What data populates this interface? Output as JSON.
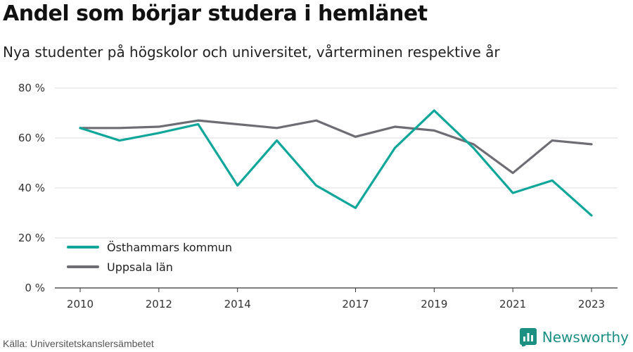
{
  "title": "Andel som börjar studera i hemlänet",
  "subtitle": "Nya studenter på högskolor och universitet, vårterminen respektive år",
  "source": "Källa: Universitetskanslersämbetet",
  "brand": "Newsworthy",
  "chart_data": {
    "type": "line",
    "x": [
      2010,
      2011,
      2012,
      2013,
      2014,
      2015,
      2016,
      2017,
      2018,
      2019,
      2020,
      2021,
      2022,
      2023
    ],
    "x_ticks": [
      "2010",
      "2012",
      "2014",
      "2017",
      "2019",
      "2021",
      "2023"
    ],
    "x_tick_values": [
      2010,
      2012,
      2014,
      2017,
      2019,
      2021,
      2023
    ],
    "ylim": [
      0,
      80
    ],
    "y_ticks": [
      "0 %",
      "20 %",
      "40 %",
      "60 %",
      "80 %"
    ],
    "y_tick_values": [
      0,
      20,
      40,
      60,
      80
    ],
    "grid": true,
    "legend_position": "bottom-left",
    "series": [
      {
        "name": "Östhammars kommun",
        "color": "#10a69a",
        "values": [
          64,
          59,
          62,
          65.5,
          41,
          59,
          41,
          32,
          56,
          71,
          56,
          38,
          43,
          29
        ]
      },
      {
        "name": "Uppsala län",
        "color": "#6e6d74",
        "values": [
          64,
          64,
          64.5,
          67,
          65.5,
          64,
          67,
          60.5,
          64.5,
          63,
          57.5,
          46,
          59,
          57.5
        ]
      }
    ]
  }
}
